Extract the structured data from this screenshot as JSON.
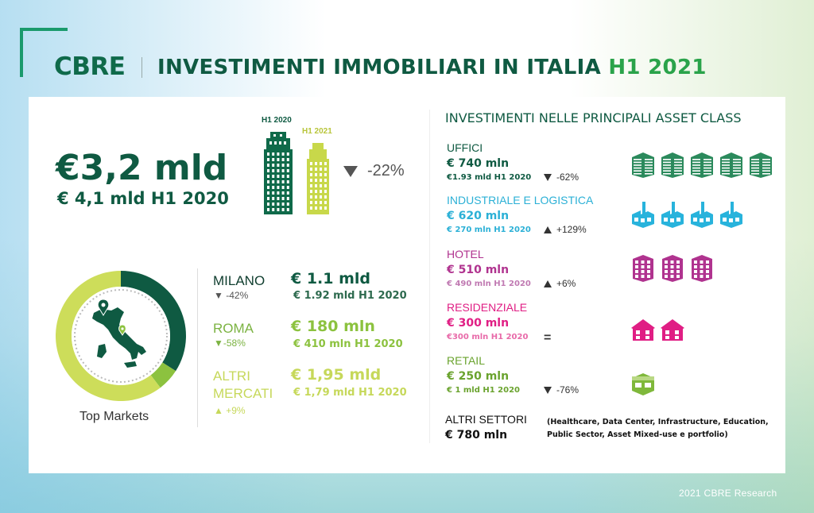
{
  "header": {
    "logo": "CBRE",
    "title": "INVESTIMENTI IMMOBILIARI IN ITALIA",
    "title_accent": "H1 2021"
  },
  "summary": {
    "value": "€3,2 mld",
    "previous": "€ 4,1 mld H1 2020",
    "label_2020": "H1 2020",
    "label_2021": "H1 2021",
    "change": "-22%"
  },
  "markets": {
    "caption": "Top Markets",
    "donut_shares": [
      {
        "name": "MILANO",
        "value": 1.1,
        "color": "#0f5a42"
      },
      {
        "name": "ROMA",
        "value": 0.18,
        "color": "#8cc23f"
      },
      {
        "name": "ALTRI MERCATI",
        "value": 1.95,
        "color": "#cddd5a"
      }
    ],
    "items": [
      {
        "name": "MILANO",
        "change": "-42%",
        "value": "€ 1.1 mld",
        "previous": "€ 1.92 mld H1 2020",
        "color": "#0f5a42"
      },
      {
        "name": "ROMA",
        "change": "-58%",
        "value": "€ 180 mln",
        "previous": "€ 410 mln H1 2020",
        "color": "#8cc23f"
      },
      {
        "name": "ALTRI MERCATI",
        "name_line1": "ALTRI",
        "name_line2": "MERCATI",
        "change": "+9%",
        "value": "€ 1,95 mld",
        "previous": "€ 1,79 mld H1 2020",
        "color": "#c6d85a"
      }
    ]
  },
  "asset_classes": {
    "title": "INVESTIMENTI NELLE PRINCIPALI ASSET CLASS",
    "items": [
      {
        "name": "UFFICI",
        "value": "€ 740 mln",
        "previous": "€1.93 mld H1 2020",
        "change": "-62%",
        "direction": "down",
        "icon": "office-building-icon",
        "icon_count": 5,
        "color": "#0f5a42",
        "prev_color": "#0f5a42",
        "icon_color": "#2b8a5c"
      },
      {
        "name": "INDUSTRIALE E LOGISTICA",
        "value": "€ 620 mln",
        "previous": "€ 270 mln H1 2020",
        "change": "+129%",
        "direction": "up",
        "icon": "factory-icon",
        "icon_count": 4,
        "color": "#2bb0d6",
        "prev_color": "#2bb0d6",
        "icon_color": "#28b3dc"
      },
      {
        "name": "HOTEL",
        "value": "€ 510 mln",
        "previous": "€ 490 mln H1 2020",
        "change": "+6%",
        "direction": "up",
        "icon": "hotel-icon",
        "icon_count": 3,
        "color": "#b0338f",
        "prev_color": "#c07ab2",
        "icon_color": "#b0338f"
      },
      {
        "name": "RESIDENZIALE",
        "value": "€ 300 mln",
        "previous": "€300 mln H1 2020",
        "change": "=",
        "direction": "equal",
        "icon": "house-icon",
        "icon_count": 2,
        "color": "#e01e84",
        "prev_color": "#e86aa9",
        "icon_color": "#e01e84"
      },
      {
        "name": "RETAIL",
        "value": "€ 250 mln",
        "previous": "€  1 mld H1 2020",
        "change": "-76%",
        "direction": "down",
        "icon": "shop-icon",
        "icon_count": 1,
        "color": "#6aa32e",
        "prev_color": "#6aa32e",
        "icon_color": "#7fb83b"
      }
    ],
    "other": {
      "name": "ALTRI SETTORI",
      "value": "€ 780 mln",
      "note": "(Healthcare, Data Center, Infrastructure, Education, Public Sector, Asset Mixed-use e portfolio)"
    }
  },
  "footer": "2021 CBRE Research"
}
